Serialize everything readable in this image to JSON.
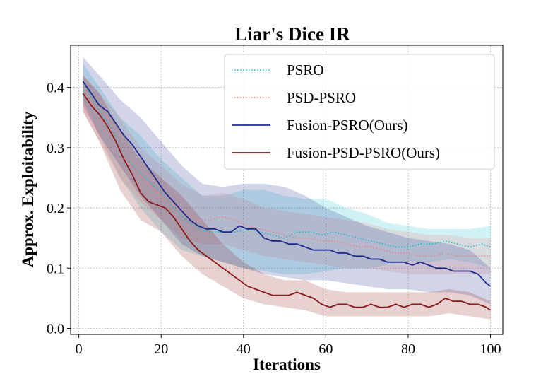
{
  "chart_data": {
    "type": "line",
    "title": "Liar's Dice IR",
    "xlabel": "Iterations",
    "ylabel": "Approx. Exploitability",
    "xlim": [
      -2,
      103
    ],
    "ylim": [
      -0.01,
      0.47
    ],
    "xticks": [
      0,
      20,
      40,
      60,
      80,
      100
    ],
    "yticks": [
      0.0,
      0.1,
      0.2,
      0.3,
      0.4
    ],
    "grid": true,
    "legend_position": "top-right",
    "series": [
      {
        "name": "PSRO",
        "color": "#17becf",
        "style": "dotted",
        "points": [
          [
            1,
            0.41
          ],
          [
            3,
            0.385
          ],
          [
            5,
            0.36
          ],
          [
            8,
            0.33
          ],
          [
            10,
            0.3
          ],
          [
            13,
            0.27
          ],
          [
            16,
            0.25
          ],
          [
            20,
            0.225
          ],
          [
            23,
            0.2
          ],
          [
            26,
            0.18
          ],
          [
            29,
            0.165
          ],
          [
            32,
            0.16
          ],
          [
            35,
            0.16
          ],
          [
            38,
            0.16
          ],
          [
            41,
            0.165
          ],
          [
            44,
            0.16
          ],
          [
            47,
            0.155
          ],
          [
            50,
            0.15
          ],
          [
            53,
            0.16
          ],
          [
            56,
            0.16
          ],
          [
            59,
            0.155
          ],
          [
            62,
            0.16
          ],
          [
            65,
            0.155
          ],
          [
            68,
            0.15
          ],
          [
            71,
            0.145
          ],
          [
            74,
            0.14
          ],
          [
            77,
            0.135
          ],
          [
            80,
            0.135
          ],
          [
            83,
            0.14
          ],
          [
            86,
            0.14
          ],
          [
            89,
            0.145
          ],
          [
            92,
            0.14
          ],
          [
            95,
            0.135
          ],
          [
            98,
            0.14
          ],
          [
            100,
            0.135
          ]
        ],
        "band": [
          [
            1,
            0.38,
            0.44
          ],
          [
            5,
            0.32,
            0.4
          ],
          [
            10,
            0.25,
            0.35
          ],
          [
            15,
            0.2,
            0.32
          ],
          [
            20,
            0.16,
            0.28
          ],
          [
            25,
            0.13,
            0.25
          ],
          [
            30,
            0.12,
            0.22
          ],
          [
            35,
            0.11,
            0.22
          ],
          [
            40,
            0.1,
            0.23
          ],
          [
            45,
            0.095,
            0.23
          ],
          [
            50,
            0.09,
            0.22
          ],
          [
            55,
            0.09,
            0.215
          ],
          [
            60,
            0.095,
            0.215
          ],
          [
            65,
            0.1,
            0.2
          ],
          [
            70,
            0.1,
            0.19
          ],
          [
            75,
            0.105,
            0.175
          ],
          [
            80,
            0.11,
            0.17
          ],
          [
            85,
            0.11,
            0.165
          ],
          [
            90,
            0.115,
            0.165
          ],
          [
            95,
            0.11,
            0.165
          ],
          [
            100,
            0.1,
            0.17
          ]
        ]
      },
      {
        "name": "PSD-PSRO",
        "color": "#f08080",
        "style": "dotted",
        "points": [
          [
            1,
            0.39
          ],
          [
            4,
            0.365
          ],
          [
            7,
            0.33
          ],
          [
            10,
            0.3
          ],
          [
            13,
            0.27
          ],
          [
            16,
            0.245
          ],
          [
            20,
            0.22
          ],
          [
            23,
            0.205
          ],
          [
            26,
            0.19
          ],
          [
            29,
            0.18
          ],
          [
            32,
            0.18
          ],
          [
            35,
            0.185
          ],
          [
            38,
            0.18
          ],
          [
            41,
            0.17
          ],
          [
            44,
            0.165
          ],
          [
            47,
            0.16
          ],
          [
            50,
            0.155
          ],
          [
            53,
            0.15
          ],
          [
            56,
            0.15
          ],
          [
            59,
            0.145
          ],
          [
            62,
            0.145
          ],
          [
            65,
            0.14
          ],
          [
            68,
            0.135
          ],
          [
            71,
            0.135
          ],
          [
            74,
            0.13
          ],
          [
            77,
            0.125
          ],
          [
            80,
            0.125
          ],
          [
            83,
            0.12
          ],
          [
            86,
            0.12
          ],
          [
            89,
            0.125
          ],
          [
            92,
            0.12
          ],
          [
            95,
            0.12
          ],
          [
            98,
            0.12
          ],
          [
            100,
            0.12
          ]
        ],
        "band": [
          [
            1,
            0.36,
            0.42
          ],
          [
            5,
            0.31,
            0.39
          ],
          [
            10,
            0.25,
            0.35
          ],
          [
            15,
            0.21,
            0.3
          ],
          [
            20,
            0.18,
            0.27
          ],
          [
            25,
            0.15,
            0.24
          ],
          [
            30,
            0.14,
            0.22
          ],
          [
            35,
            0.14,
            0.225
          ],
          [
            40,
            0.13,
            0.215
          ],
          [
            45,
            0.12,
            0.2
          ],
          [
            50,
            0.115,
            0.195
          ],
          [
            55,
            0.11,
            0.19
          ],
          [
            60,
            0.105,
            0.185
          ],
          [
            65,
            0.1,
            0.18
          ],
          [
            70,
            0.1,
            0.175
          ],
          [
            75,
            0.095,
            0.165
          ],
          [
            80,
            0.09,
            0.16
          ],
          [
            85,
            0.09,
            0.155
          ],
          [
            90,
            0.09,
            0.155
          ],
          [
            95,
            0.09,
            0.15
          ],
          [
            100,
            0.09,
            0.15
          ]
        ]
      },
      {
        "name": "Fusion-PSRO(Ours)",
        "color": "#1f2b8c",
        "style": "solid",
        "points": [
          [
            1,
            0.41
          ],
          [
            3,
            0.39
          ],
          [
            5,
            0.37
          ],
          [
            7,
            0.36
          ],
          [
            9,
            0.34
          ],
          [
            11,
            0.32
          ],
          [
            13,
            0.305
          ],
          [
            15,
            0.285
          ],
          [
            17,
            0.265
          ],
          [
            19,
            0.245
          ],
          [
            21,
            0.225
          ],
          [
            23,
            0.21
          ],
          [
            25,
            0.195
          ],
          [
            27,
            0.18
          ],
          [
            29,
            0.17
          ],
          [
            31,
            0.165
          ],
          [
            33,
            0.165
          ],
          [
            35,
            0.16
          ],
          [
            37,
            0.16
          ],
          [
            39,
            0.17
          ],
          [
            41,
            0.165
          ],
          [
            43,
            0.165
          ],
          [
            45,
            0.15
          ],
          [
            47,
            0.145
          ],
          [
            49,
            0.145
          ],
          [
            51,
            0.14
          ],
          [
            53,
            0.14
          ],
          [
            55,
            0.135
          ],
          [
            57,
            0.13
          ],
          [
            59,
            0.13
          ],
          [
            61,
            0.13
          ],
          [
            63,
            0.125
          ],
          [
            65,
            0.125
          ],
          [
            67,
            0.12
          ],
          [
            69,
            0.12
          ],
          [
            71,
            0.115
          ],
          [
            73,
            0.115
          ],
          [
            75,
            0.11
          ],
          [
            77,
            0.11
          ],
          [
            79,
            0.11
          ],
          [
            81,
            0.105
          ],
          [
            83,
            0.11
          ],
          [
            85,
            0.105
          ],
          [
            87,
            0.1
          ],
          [
            89,
            0.1
          ],
          [
            91,
            0.095
          ],
          [
            93,
            0.095
          ],
          [
            95,
            0.095
          ],
          [
            97,
            0.09
          ],
          [
            99,
            0.075
          ],
          [
            100,
            0.07
          ]
        ],
        "band": [
          [
            1,
            0.37,
            0.45
          ],
          [
            5,
            0.32,
            0.42
          ],
          [
            10,
            0.27,
            0.38
          ],
          [
            15,
            0.22,
            0.35
          ],
          [
            20,
            0.18,
            0.31
          ],
          [
            25,
            0.14,
            0.27
          ],
          [
            30,
            0.12,
            0.24
          ],
          [
            35,
            0.11,
            0.235
          ],
          [
            40,
            0.1,
            0.24
          ],
          [
            45,
            0.09,
            0.24
          ],
          [
            50,
            0.085,
            0.235
          ],
          [
            55,
            0.08,
            0.22
          ],
          [
            60,
            0.08,
            0.2
          ],
          [
            65,
            0.075,
            0.185
          ],
          [
            70,
            0.07,
            0.17
          ],
          [
            75,
            0.065,
            0.16
          ],
          [
            80,
            0.065,
            0.15
          ],
          [
            85,
            0.06,
            0.145
          ],
          [
            90,
            0.06,
            0.14
          ],
          [
            95,
            0.055,
            0.13
          ],
          [
            100,
            0.04,
            0.1
          ]
        ]
      },
      {
        "name": "Fusion-PSD-PSRO(Ours)",
        "color": "#8b1a1a",
        "style": "solid",
        "points": [
          [
            1,
            0.39
          ],
          [
            3,
            0.37
          ],
          [
            5,
            0.355
          ],
          [
            7,
            0.335
          ],
          [
            9,
            0.31
          ],
          [
            11,
            0.28
          ],
          [
            13,
            0.255
          ],
          [
            15,
            0.225
          ],
          [
            17,
            0.21
          ],
          [
            19,
            0.205
          ],
          [
            21,
            0.2
          ],
          [
            23,
            0.185
          ],
          [
            25,
            0.165
          ],
          [
            27,
            0.145
          ],
          [
            29,
            0.13
          ],
          [
            31,
            0.12
          ],
          [
            33,
            0.11
          ],
          [
            35,
            0.1
          ],
          [
            37,
            0.09
          ],
          [
            39,
            0.08
          ],
          [
            41,
            0.07
          ],
          [
            43,
            0.065
          ],
          [
            45,
            0.06
          ],
          [
            47,
            0.055
          ],
          [
            49,
            0.055
          ],
          [
            51,
            0.055
          ],
          [
            53,
            0.06
          ],
          [
            55,
            0.055
          ],
          [
            57,
            0.05
          ],
          [
            59,
            0.04
          ],
          [
            61,
            0.035
          ],
          [
            63,
            0.04
          ],
          [
            65,
            0.04
          ],
          [
            67,
            0.035
          ],
          [
            69,
            0.035
          ],
          [
            71,
            0.04
          ],
          [
            73,
            0.035
          ],
          [
            75,
            0.035
          ],
          [
            77,
            0.04
          ],
          [
            79,
            0.035
          ],
          [
            81,
            0.04
          ],
          [
            83,
            0.04
          ],
          [
            85,
            0.035
          ],
          [
            87,
            0.04
          ],
          [
            89,
            0.05
          ],
          [
            91,
            0.045
          ],
          [
            93,
            0.045
          ],
          [
            95,
            0.04
          ],
          [
            97,
            0.04
          ],
          [
            99,
            0.035
          ],
          [
            100,
            0.03
          ]
        ],
        "band": [
          [
            1,
            0.36,
            0.42
          ],
          [
            5,
            0.31,
            0.39
          ],
          [
            10,
            0.23,
            0.33
          ],
          [
            15,
            0.18,
            0.28
          ],
          [
            20,
            0.16,
            0.25
          ],
          [
            25,
            0.12,
            0.22
          ],
          [
            30,
            0.09,
            0.18
          ],
          [
            35,
            0.07,
            0.14
          ],
          [
            40,
            0.05,
            0.11
          ],
          [
            45,
            0.04,
            0.09
          ],
          [
            50,
            0.035,
            0.08
          ],
          [
            55,
            0.03,
            0.08
          ],
          [
            60,
            0.02,
            0.065
          ],
          [
            65,
            0.02,
            0.06
          ],
          [
            70,
            0.02,
            0.06
          ],
          [
            75,
            0.02,
            0.06
          ],
          [
            80,
            0.02,
            0.06
          ],
          [
            85,
            0.02,
            0.06
          ],
          [
            90,
            0.025,
            0.065
          ],
          [
            95,
            0.02,
            0.06
          ],
          [
            100,
            0.015,
            0.045
          ]
        ]
      }
    ]
  }
}
